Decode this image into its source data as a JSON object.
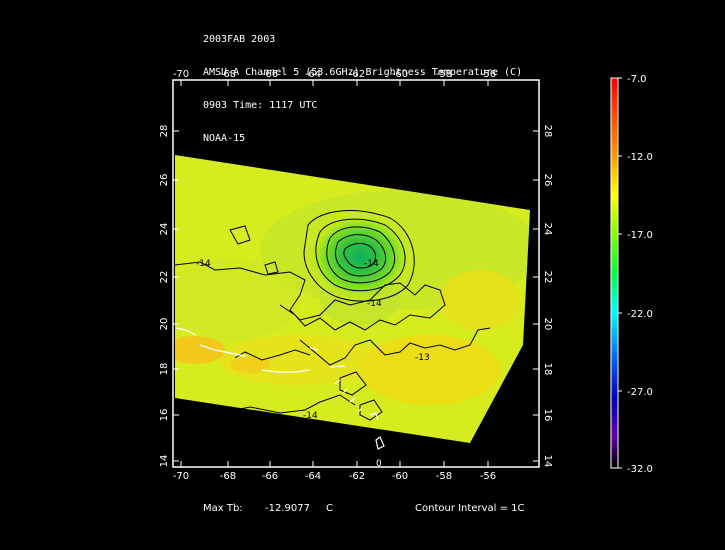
{
  "title": {
    "line1": "2003FAB 2003",
    "line2": "AMSU-A Channel 5 (53.6GHz) Brightness Temperature (C)",
    "line3": "0903 Time: 1117 UTC",
    "line4": "NOAA-15"
  },
  "map": {
    "lon_ticks": [
      "-70",
      "-68",
      "-66",
      "-64",
      "-62",
      "-60",
      "-58",
      "-56"
    ],
    "lat_ticks": [
      "14",
      "16",
      "18",
      "20",
      "22",
      "24",
      "26",
      "28"
    ],
    "contour_labels": [
      "-14",
      "-14",
      "-14",
      "-13",
      "-14",
      "0"
    ]
  },
  "colorbar": {
    "labels": [
      "-7.0",
      "-12.0",
      "-17.0",
      "-22.0",
      "-27.0",
      "-32.0"
    ],
    "colors": [
      "#ff0000",
      "#ff8000",
      "#ffff00",
      "#00ff00",
      "#00ffff",
      "#0000ff",
      "#8000ff",
      "#000000"
    ]
  },
  "footer": {
    "max_tb_label": "Max Tb:",
    "max_tb_value": "-12.9077",
    "max_tb_unit": "C",
    "contour_interval": "Contour Interval = 1C"
  }
}
